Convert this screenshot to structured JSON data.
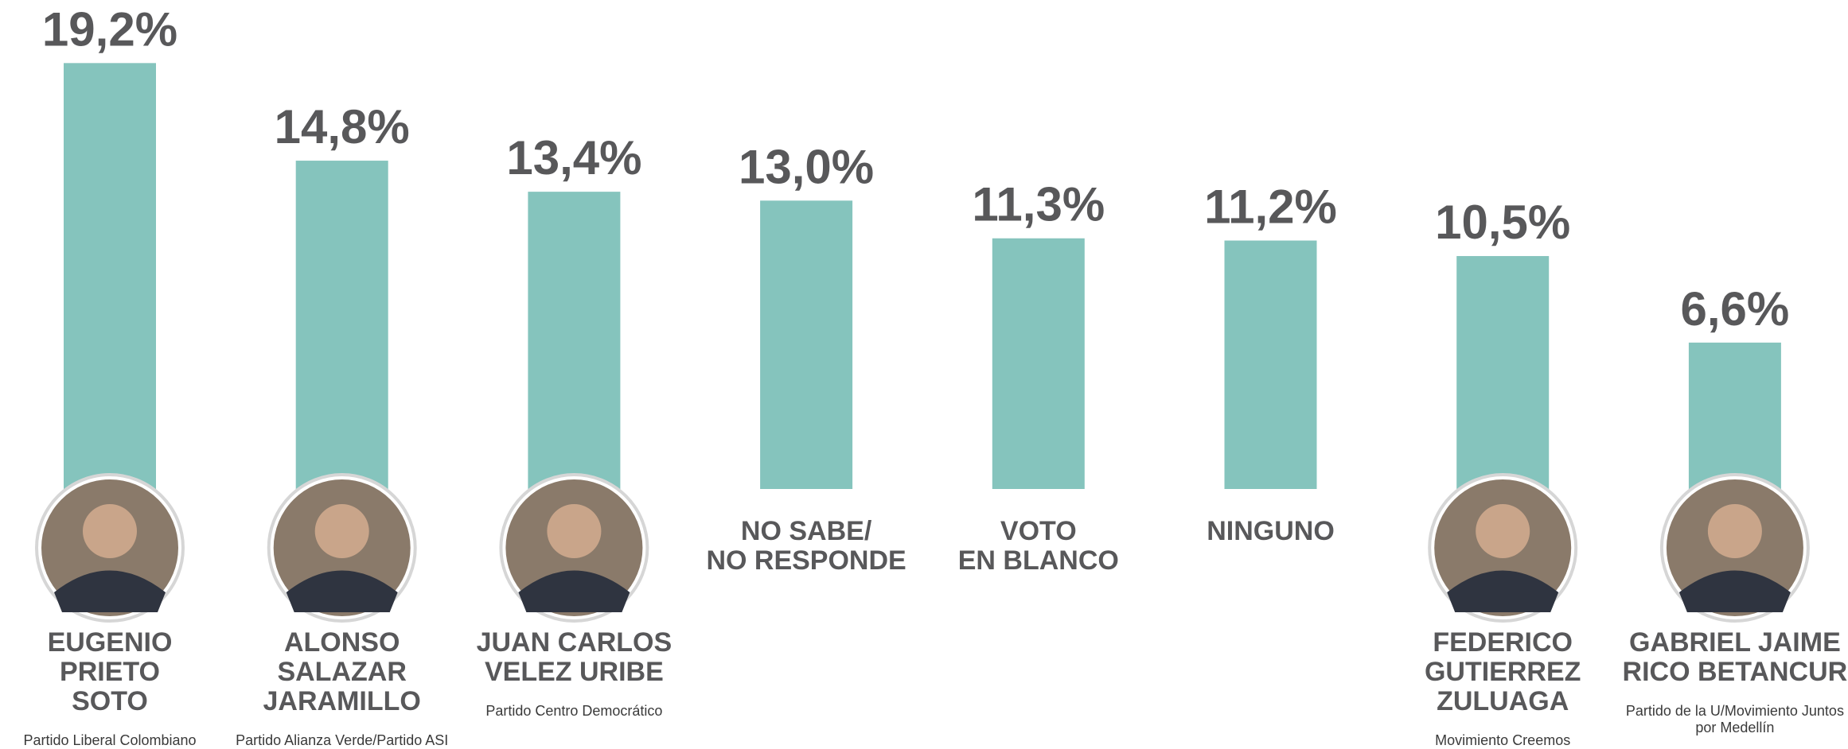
{
  "chart_data": {
    "type": "bar",
    "categories": [
      "EUGENIO\nPRIETO\nSOTO",
      "ALONSO\nSALAZAR\nJARAMILLO",
      "JUAN CARLOS\nVELEZ URIBE",
      "NO SABE/\nNO RESPONDE",
      "VOTO\nEN BLANCO",
      "NINGUNO",
      "FEDERICO\nGUTIERREZ\nZULUAGA",
      "GABRIEL JAIME\nRICO BETANCUR"
    ],
    "parties": [
      "Partido Liberal Colombiano",
      "Partido Alianza Verde/Partido ASI",
      "Partido Centro Democrático",
      null,
      null,
      null,
      "Movimiento Creemos",
      "Partido de la U/Movimiento Juntos\npor Medellín"
    ],
    "values": [
      19.2,
      14.8,
      13.4,
      13.0,
      11.3,
      11.2,
      10.5,
      6.6
    ],
    "value_labels": [
      "19,2%",
      "14,8%",
      "13,4%",
      "13,0%",
      "11,3%",
      "11,2%",
      "10,5%",
      "6,6%"
    ],
    "color": "#85c4bd"
  }
}
